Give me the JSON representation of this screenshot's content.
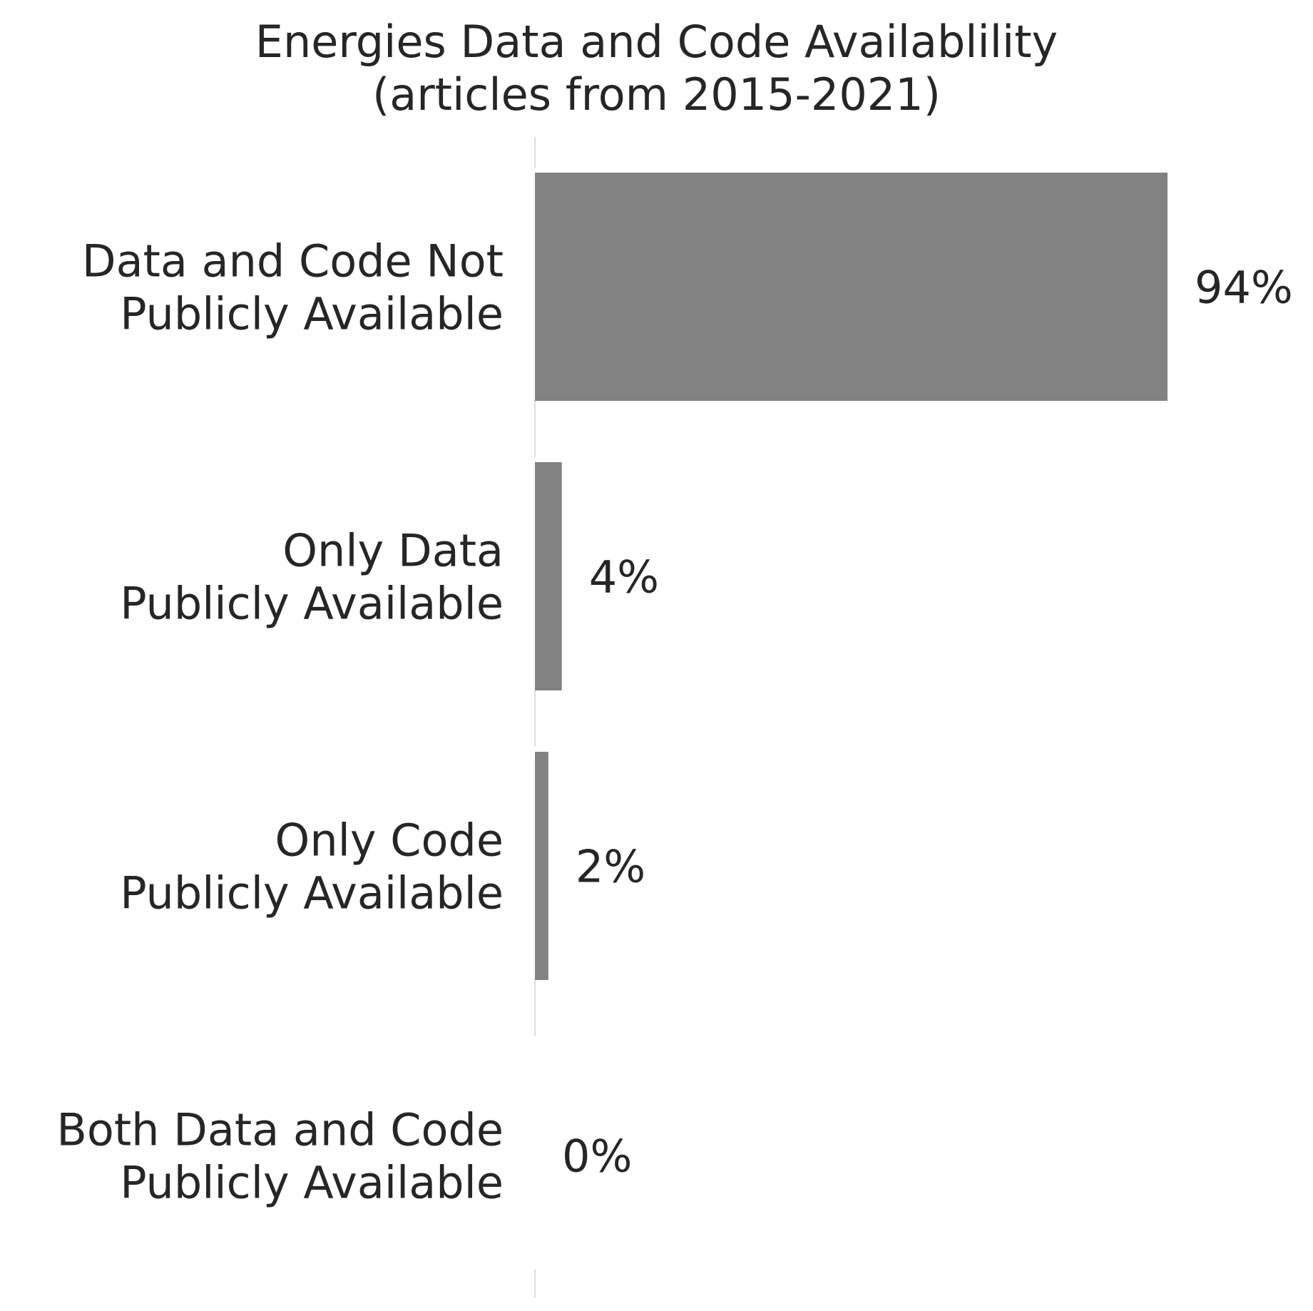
{
  "chart_data": {
    "type": "bar",
    "orientation": "horizontal",
    "title": [
      "Energies Data and Code Availablility",
      "(articles from 2015-2021)"
    ],
    "xlabel": "",
    "ylabel": "",
    "categories": [
      [
        "Data and Code Not",
        "Publicly Available"
      ],
      [
        "Only Data",
        "Publicly Available"
      ],
      [
        "Only Code",
        "Publicly Available"
      ],
      [
        "Both Data and Code",
        "Publicly Available"
      ]
    ],
    "values": [
      94,
      4,
      2,
      0
    ],
    "value_labels": [
      "94%",
      "4%",
      "2%",
      "0%"
    ],
    "xlim": [
      0,
      100
    ],
    "grid": false,
    "legend": "none",
    "bar_color": "#828282",
    "text_color": "#262626",
    "axis_line_color": "#dddddd"
  }
}
